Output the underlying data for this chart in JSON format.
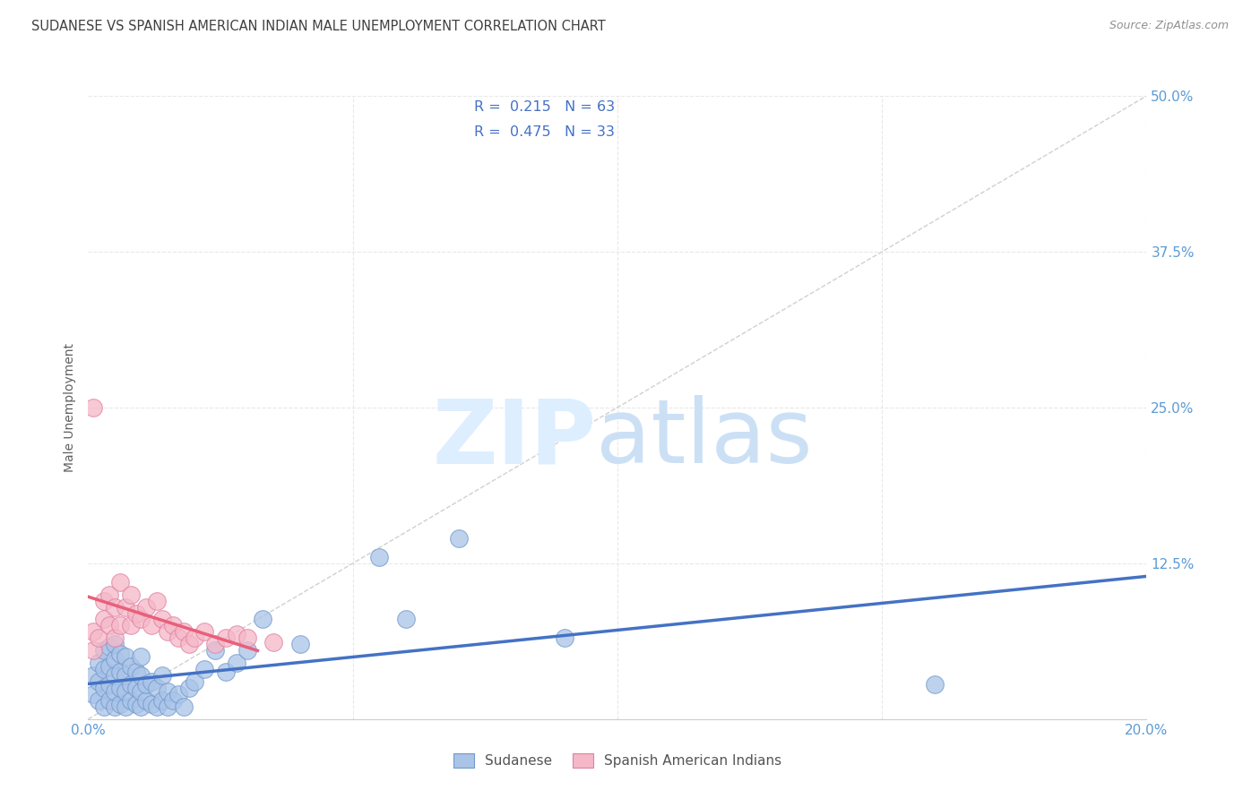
{
  "title": "SUDANESE VS SPANISH AMERICAN INDIAN MALE UNEMPLOYMENT CORRELATION CHART",
  "source": "Source: ZipAtlas.com",
  "ylabel": "Male Unemployment",
  "xlim": [
    0.0,
    0.2
  ],
  "ylim": [
    0.0,
    0.5
  ],
  "background_color": "#ffffff",
  "grid_color": "#e8e8e8",
  "sudanese_color": "#aac4e8",
  "sudanese_edge": "#7099cc",
  "spanish_color": "#f5b8c8",
  "spanish_edge": "#e080a0",
  "sudanese_line_color": "#4472c4",
  "spanish_line_color": "#e8607a",
  "diagonal_color": "#d0d0d0",
  "tick_color": "#5b9bd5",
  "title_color": "#404040",
  "ylabel_color": "#606060",
  "source_color": "#909090",
  "sudanese_R": "0.215",
  "sudanese_N": "63",
  "spanish_R": "0.475",
  "spanish_N": "33",
  "sudanese_scatter_x": [
    0.001,
    0.001,
    0.002,
    0.002,
    0.002,
    0.003,
    0.003,
    0.003,
    0.003,
    0.004,
    0.004,
    0.004,
    0.004,
    0.005,
    0.005,
    0.005,
    0.005,
    0.005,
    0.006,
    0.006,
    0.006,
    0.006,
    0.007,
    0.007,
    0.007,
    0.007,
    0.008,
    0.008,
    0.008,
    0.009,
    0.009,
    0.009,
    0.01,
    0.01,
    0.01,
    0.01,
    0.011,
    0.011,
    0.012,
    0.012,
    0.013,
    0.013,
    0.014,
    0.014,
    0.015,
    0.015,
    0.016,
    0.017,
    0.018,
    0.019,
    0.02,
    0.022,
    0.024,
    0.026,
    0.028,
    0.03,
    0.033,
    0.04,
    0.055,
    0.06,
    0.07,
    0.09,
    0.16
  ],
  "sudanese_scatter_y": [
    0.02,
    0.035,
    0.015,
    0.03,
    0.045,
    0.01,
    0.025,
    0.04,
    0.055,
    0.015,
    0.028,
    0.042,
    0.058,
    0.01,
    0.022,
    0.035,
    0.048,
    0.06,
    0.012,
    0.025,
    0.038,
    0.052,
    0.01,
    0.022,
    0.035,
    0.05,
    0.015,
    0.028,
    0.042,
    0.012,
    0.025,
    0.038,
    0.01,
    0.022,
    0.035,
    0.05,
    0.015,
    0.028,
    0.012,
    0.03,
    0.01,
    0.025,
    0.015,
    0.035,
    0.01,
    0.022,
    0.015,
    0.02,
    0.01,
    0.025,
    0.03,
    0.04,
    0.055,
    0.038,
    0.045,
    0.055,
    0.08,
    0.06,
    0.13,
    0.08,
    0.145,
    0.065,
    0.028
  ],
  "spanish_scatter_x": [
    0.001,
    0.001,
    0.002,
    0.003,
    0.003,
    0.004,
    0.004,
    0.005,
    0.005,
    0.006,
    0.006,
    0.007,
    0.008,
    0.008,
    0.009,
    0.01,
    0.011,
    0.012,
    0.013,
    0.014,
    0.015,
    0.016,
    0.017,
    0.018,
    0.019,
    0.02,
    0.022,
    0.024,
    0.026,
    0.028,
    0.03,
    0.035,
    0.001
  ],
  "spanish_scatter_y": [
    0.055,
    0.07,
    0.065,
    0.08,
    0.095,
    0.075,
    0.1,
    0.065,
    0.09,
    0.075,
    0.11,
    0.09,
    0.075,
    0.1,
    0.085,
    0.08,
    0.09,
    0.075,
    0.095,
    0.08,
    0.07,
    0.075,
    0.065,
    0.07,
    0.06,
    0.065,
    0.07,
    0.06,
    0.065,
    0.068,
    0.065,
    0.062,
    0.25
  ]
}
